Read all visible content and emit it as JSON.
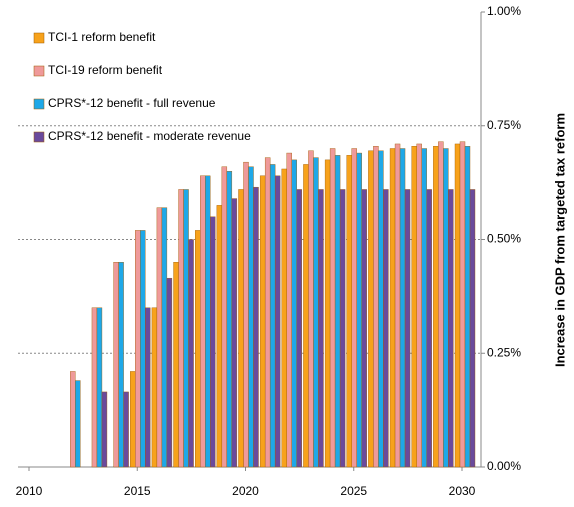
{
  "chart_data": {
    "type": "bar",
    "y_axis_label": "Increase in GDP from targeted tax reform",
    "categories": [
      "2010",
      null,
      null,
      null,
      null,
      "2015",
      null,
      null,
      null,
      null,
      "2020",
      null,
      null,
      null,
      null,
      "2025",
      null,
      null,
      null,
      null,
      "2030"
    ],
    "series": [
      {
        "name": "TCI-1 reform benefit",
        "color": "#f7a21b",
        "values": [
          null,
          null,
          null,
          null,
          null,
          0.21,
          0.35,
          0.45,
          0.52,
          0.575,
          0.61,
          0.64,
          0.655,
          0.665,
          0.675,
          0.685,
          0.695,
          0.7,
          0.705,
          0.705,
          0.71
        ]
      },
      {
        "name": "TCI-19 reform benefit",
        "color": "#ef9a9a",
        "values": [
          null,
          null,
          0.21,
          0.35,
          0.45,
          0.52,
          0.57,
          0.61,
          0.64,
          0.66,
          0.67,
          0.68,
          0.69,
          0.695,
          0.7,
          0.7,
          0.705,
          0.71,
          0.71,
          0.715,
          0.715
        ]
      },
      {
        "name": "CPRS*-12 benefit - full revenue",
        "color": "#1ea8e8",
        "values": [
          null,
          null,
          0.19,
          0.35,
          0.45,
          0.52,
          0.57,
          0.61,
          0.64,
          0.65,
          0.66,
          0.665,
          0.675,
          0.68,
          0.685,
          0.69,
          0.695,
          0.7,
          0.7,
          0.7,
          0.705
        ]
      },
      {
        "name": "CPRS*-12 benefit - moderate revenue",
        "color": "#6a4a9c",
        "values": [
          null,
          null,
          null,
          0.165,
          0.165,
          0.35,
          0.415,
          0.5,
          0.55,
          0.59,
          0.615,
          0.64,
          0.61,
          0.61,
          0.61,
          0.61,
          0.61,
          0.61,
          0.61,
          0.61,
          0.61
        ]
      }
    ],
    "ylim": [
      0,
      1
    ],
    "yticks": [
      {
        "value": 0,
        "label": "0.00%"
      },
      {
        "value": 0.25,
        "label": "0.25%"
      },
      {
        "value": 0.5,
        "label": "0.50%"
      },
      {
        "value": 0.75,
        "label": "0.75%"
      },
      {
        "value": 1,
        "label": "1.00%"
      }
    ],
    "grid": true
  }
}
